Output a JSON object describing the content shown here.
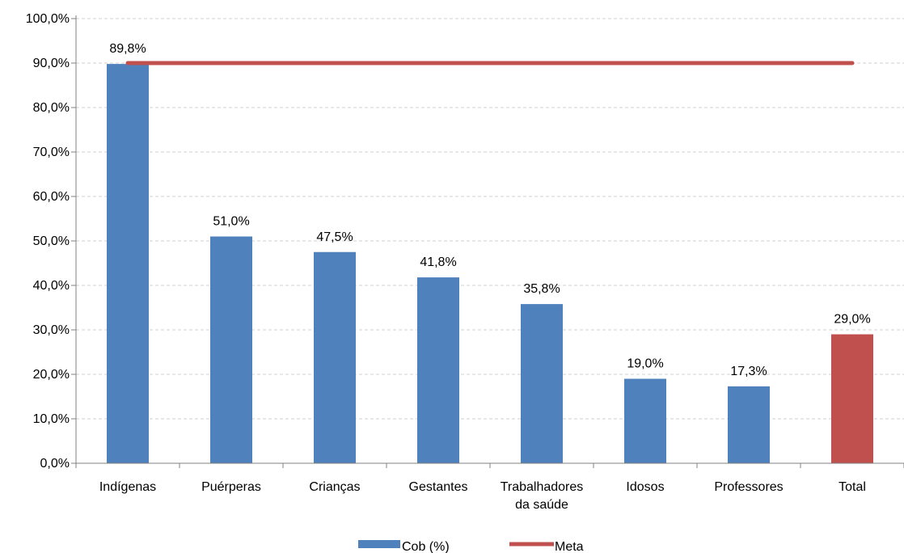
{
  "chart_data": {
    "type": "bar",
    "title": "",
    "xlabel": "",
    "ylabel": "",
    "categories": [
      "Indígenas",
      "Puérperas",
      "Crianças",
      "Gestantes",
      "Trabalhadores da saúde",
      "Idosos",
      "Professores",
      "Total"
    ],
    "category_lines": [
      [
        "Indígenas"
      ],
      [
        "Puérperas"
      ],
      [
        "Crianças"
      ],
      [
        "Gestantes"
      ],
      [
        "Trabalhadores",
        "da saúde"
      ],
      [
        "Idosos"
      ],
      [
        "Professores"
      ],
      [
        "Total"
      ]
    ],
    "series": [
      {
        "name": "Cob (%)",
        "type": "bar",
        "values": [
          89.8,
          51.0,
          47.5,
          41.8,
          35.8,
          19.0,
          17.3,
          29.0
        ],
        "labels": [
          "89,8%",
          "51,0%",
          "47,5%",
          "41,8%",
          "35,8%",
          "19,0%",
          "17,3%",
          "29,0%"
        ],
        "color": "#4f81bd",
        "highlight_color": "#c0504d",
        "highlight_index": 7
      },
      {
        "name": "Meta",
        "type": "line",
        "value": 90.0,
        "color": "#c0504d"
      }
    ],
    "ylim": [
      0,
      100
    ],
    "yticks": [
      0,
      10,
      20,
      30,
      40,
      50,
      60,
      70,
      80,
      90,
      100
    ],
    "ytick_labels": [
      "0,0%",
      "10,0%",
      "20,0%",
      "30,0%",
      "40,0%",
      "50,0%",
      "60,0%",
      "70,0%",
      "80,0%",
      "90,0%",
      "100,0%"
    ],
    "grid": true,
    "legend_position": "bottom"
  }
}
